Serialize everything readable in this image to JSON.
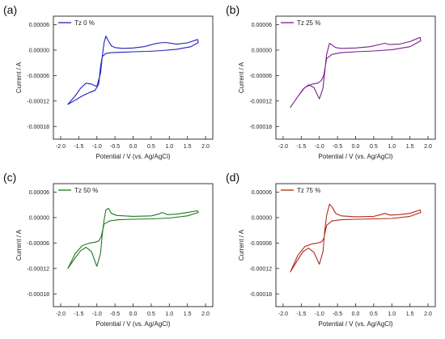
{
  "chart_data": [
    {
      "panel": "(a)",
      "type": "line",
      "legend": "Tz 0 %",
      "color": "#1f1fbf",
      "xlabel": "Potential / V (vs. Ag/AgCl)",
      "ylabel": "Current / A",
      "xlim": [
        -2.2,
        2.2
      ],
      "ylim": [
        -0.00021,
        8e-05
      ],
      "xticks": [
        "-2.0",
        "-1.5",
        "-1.0",
        "-0.5",
        "0.0",
        "0.5",
        "1.0",
        "1.5",
        "2.0"
      ],
      "yticks": [
        "0.00006",
        "0.00000",
        "-0.00006",
        "-0.00012",
        "-0.00018"
      ],
      "series": [
        {
          "x": [
            -1.8,
            -1.6,
            -1.45,
            -1.3,
            -1.15,
            -1.0,
            -0.9,
            -0.85,
            -0.8,
            -0.75,
            -0.7,
            -0.6,
            -0.5,
            -0.3,
            0.0,
            0.3,
            0.6,
            0.75,
            0.9,
            1.2,
            1.5,
            1.78,
            1.8,
            1.6,
            1.2,
            0.8,
            0.4,
            0.0,
            -0.3,
            -0.6,
            -0.75,
            -0.85,
            -0.9,
            -0.95,
            -1.05,
            -1.2,
            -1.4,
            -1.6,
            -1.8
          ],
          "y": [
            -0.000128,
            -0.000108,
            -9e-05,
            -7.8e-05,
            -8e-05,
            -8.6e-05,
            -5.5e-05,
            -1.5e-05,
            1.8e-05,
            3.3e-05,
            2.4e-05,
            1e-05,
            6e-06,
            4e-06,
            5e-06,
            8e-06,
            1.5e-05,
            1.7e-05,
            1.8e-05,
            1.4e-05,
            1.7e-05,
            2.5e-05,
            1.8e-05,
            8e-06,
            2e-06,
            -1e-06,
            -3e-06,
            -4e-06,
            -5e-06,
            -6e-06,
            -8e-06,
            -1.5e-05,
            -4e-05,
            -8e-05,
            -9.5e-05,
            -0.0001,
            -0.000108,
            -0.000118,
            -0.000128
          ]
        }
      ]
    },
    {
      "panel": "(b)",
      "type": "line",
      "legend": "Tz 25 %",
      "color": "#7a1f8c",
      "xlabel": "Potential / V (vs. Ag/AgCl)",
      "ylabel": "Current / A",
      "xlim": [
        -2.2,
        2.2
      ],
      "ylim": [
        -0.00021,
        8e-05
      ],
      "xticks": [
        "-2.0",
        "-1.5",
        "-1.0",
        "-0.5",
        "0.0",
        "0.5",
        "1.0",
        "1.5",
        "2.0"
      ],
      "yticks": [
        "0.00006",
        "0.00000",
        "-0.00006",
        "-0.00012",
        "-0.00018"
      ],
      "series": [
        {
          "x": [
            -1.8,
            -1.6,
            -1.45,
            -1.3,
            -1.15,
            -1.0,
            -0.9,
            -0.85,
            -0.8,
            -0.72,
            -0.65,
            -0.55,
            -0.4,
            0.0,
            0.4,
            0.7,
            0.8,
            0.95,
            1.2,
            1.5,
            1.78,
            1.8,
            1.5,
            1.0,
            0.5,
            0.0,
            -0.4,
            -0.65,
            -0.8,
            -0.88,
            -0.95,
            -1.05,
            -1.2,
            -1.4,
            -1.6,
            -1.8
          ],
          "y": [
            -0.000135,
            -0.00011,
            -9.2e-05,
            -8.2e-05,
            -8.8e-05,
            -0.000115,
            -9e-05,
            -5e-05,
            -1e-05,
            1.6e-05,
            1.2e-05,
            6e-06,
            4e-06,
            5e-06,
            8e-06,
            1.4e-05,
            1.6e-05,
            1.3e-05,
            1.4e-05,
            2e-05,
            3e-05,
            2.2e-05,
            8e-06,
            1e-06,
            -2e-06,
            -4e-06,
            -6e-06,
            -1e-05,
            -2e-05,
            -6e-05,
            -7.2e-05,
            -7.8e-05,
            -8e-05,
            -8.8e-05,
            -0.00011,
            -0.000135
          ]
        }
      ]
    },
    {
      "panel": "(c)",
      "type": "line",
      "legend": "Tz 50 %",
      "color": "#1f7a1f",
      "xlabel": "Potential / V (vs. Ag/AgCl)",
      "ylabel": "Current / A",
      "xlim": [
        -2.2,
        2.2
      ],
      "ylim": [
        -0.00021,
        8e-05
      ],
      "xticks": [
        "-2.0",
        "-1.5",
        "-1.0",
        "-0.5",
        "0.0",
        "0.5",
        "1.0",
        "1.5",
        "2.0"
      ],
      "yticks": [
        "0.00006",
        "0.00000",
        "-0.00006",
        "-0.00012",
        "-0.00018"
      ],
      "series": [
        {
          "x": [
            -1.8,
            -1.6,
            -1.45,
            -1.3,
            -1.15,
            -1.0,
            -0.9,
            -0.85,
            -0.8,
            -0.75,
            -0.68,
            -0.6,
            -0.45,
            0.0,
            0.5,
            0.7,
            0.8,
            0.95,
            1.2,
            1.5,
            1.78,
            1.8,
            1.5,
            1.0,
            0.5,
            0.0,
            -0.4,
            -0.65,
            -0.8,
            -0.88,
            -0.95,
            -1.05,
            -1.2,
            -1.4,
            -1.6,
            -1.8
          ],
          "y": [
            -0.00012,
            -9.5e-05,
            -7.8e-05,
            -7e-05,
            -8e-05,
            -0.000115,
            -8.5e-05,
            -4e-05,
            -5e-06,
            1.8e-05,
            2.2e-05,
            1e-05,
            5e-06,
            3e-06,
            4e-06,
            8e-06,
            1.2e-05,
            7e-06,
            8e-06,
            1.2e-05,
            1.6e-05,
            1.2e-05,
            4e-06,
            -1e-06,
            -3e-06,
            -4e-06,
            -5e-06,
            -8e-06,
            -1.5e-05,
            -4.5e-05,
            -5.5e-05,
            -5.8e-05,
            -6e-05,
            -6.6e-05,
            -8.5e-05,
            -0.00012
          ]
        }
      ]
    },
    {
      "panel": "(d)",
      "type": "line",
      "legend": "Tz 75 %",
      "color": "#b22a1a",
      "xlabel": "Potential / V (vs. Ag/AgCl)",
      "ylabel": "Current / A",
      "xlim": [
        -2.2,
        2.2
      ],
      "ylim": [
        -0.00021,
        8e-05
      ],
      "xticks": [
        "-2.0",
        "-1.5",
        "-1.0",
        "-0.5",
        "0.0",
        "0.5",
        "1.0",
        "1.5",
        "2.0"
      ],
      "yticks": [
        "0.00006",
        "0.00000",
        "-0.00006",
        "-0.00012",
        "-0.00018"
      ],
      "series": [
        {
          "x": [
            -1.8,
            -1.6,
            -1.45,
            -1.3,
            -1.15,
            -1.0,
            -0.9,
            -0.85,
            -0.8,
            -0.72,
            -0.65,
            -0.55,
            -0.4,
            0.0,
            0.5,
            0.7,
            0.8,
            0.95,
            1.2,
            1.5,
            1.78,
            1.8,
            1.5,
            1.0,
            0.5,
            0.0,
            -0.4,
            -0.65,
            -0.8,
            -0.88,
            -0.95,
            -1.05,
            -1.2,
            -1.4,
            -1.6,
            -1.8
          ],
          "y": [
            -0.000128,
            -0.0001,
            -8e-05,
            -7.2e-05,
            -8.2e-05,
            -0.00011,
            -8e-05,
            -3e-05,
            5e-06,
            3.2e-05,
            2.5e-05,
            1e-05,
            4e-06,
            2e-06,
            3e-06,
            7e-06,
            1e-05,
            6e-06,
            7e-06,
            1e-05,
            1.8e-05,
            1.2e-05,
            3e-06,
            -2e-06,
            -3e-06,
            -4e-06,
            -5e-06,
            -8e-06,
            -1.8e-05,
            -5e-05,
            -5.8e-05,
            -6e-05,
            -6.2e-05,
            -6.8e-05,
            -9e-05,
            -0.000128
          ]
        }
      ]
    }
  ]
}
